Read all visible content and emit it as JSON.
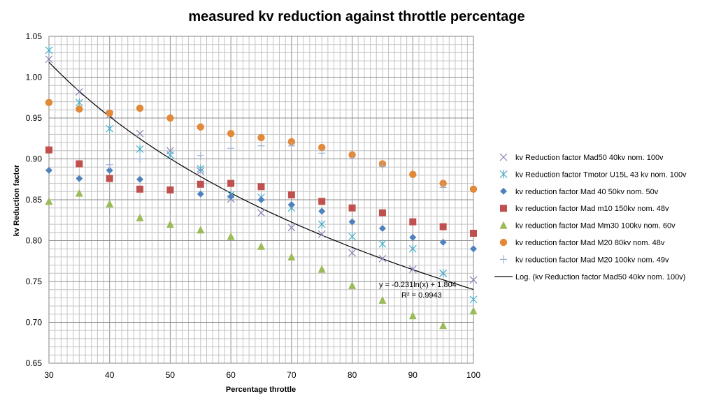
{
  "chart_data": {
    "type": "scatter",
    "title": "measured kv reduction against throttle percentage",
    "xlabel": "Percentage throttle",
    "ylabel": "kv Reduction factor",
    "xlim": [
      30,
      100
    ],
    "ylim": [
      0.65,
      1.05
    ],
    "x_ticks": [
      "30",
      "40",
      "50",
      "60",
      "70",
      "80",
      "90",
      "100"
    ],
    "y_ticks": [
      "0.65",
      "0.70",
      "0.75",
      "0.80",
      "0.85",
      "0.90",
      "0.95",
      "1.00",
      "1.05"
    ],
    "grid": true,
    "legend_position": "right",
    "x": [
      30,
      35,
      40,
      45,
      50,
      55,
      60,
      65,
      70,
      75,
      80,
      85,
      90,
      95,
      100
    ],
    "series": [
      {
        "name": "kv Reduction factor Mad50 40kv nom. 100v",
        "marker": "x",
        "color": "#8a7fb8",
        "values": [
          1.022,
          0.982,
          0.954,
          0.931,
          0.91,
          0.885,
          0.851,
          0.834,
          0.816,
          0.808,
          0.785,
          0.778,
          0.765,
          0.76,
          0.752
        ]
      },
      {
        "name": "kv Reduction factor Tmotor U15L 43 kv nom. 100v",
        "marker": "asterisk",
        "color": "#4bacc6",
        "values": [
          1.033,
          0.969,
          0.937,
          0.912,
          0.905,
          0.888,
          0.856,
          0.853,
          0.84,
          0.82,
          0.805,
          0.796,
          0.79,
          0.76,
          0.728
        ]
      },
      {
        "name": "kv reduction factor Mad 40 50kv nom. 50v",
        "marker": "diamond",
        "color": "#4f81bd",
        "values": [
          0.886,
          0.876,
          0.886,
          0.875,
          null,
          0.857,
          0.854,
          0.85,
          0.844,
          0.836,
          0.823,
          0.815,
          0.804,
          0.798,
          0.79
        ]
      },
      {
        "name": "kv reduction factor Mad m10 150kv nom. 48v",
        "marker": "square",
        "color": "#c0504d",
        "values": [
          0.911,
          0.894,
          0.876,
          0.863,
          0.862,
          0.869,
          0.87,
          0.866,
          0.856,
          0.848,
          0.84,
          0.834,
          0.823,
          0.817,
          0.809
        ]
      },
      {
        "name": "kv reduction factor Mad Mm30 100kv nom. 60v",
        "marker": "triangle",
        "color": "#9bbb59",
        "values": [
          0.848,
          0.858,
          0.845,
          0.828,
          0.82,
          0.813,
          0.805,
          0.793,
          0.78,
          0.765,
          0.745,
          0.727,
          0.708,
          0.696,
          0.714
        ]
      },
      {
        "name": "kv reduction factor Mad M20 80kv nom. 48v",
        "marker": "circle",
        "color": "#e2893a",
        "values": [
          0.969,
          0.961,
          0.956,
          0.962,
          0.95,
          0.939,
          0.931,
          0.926,
          0.921,
          0.914,
          0.905,
          0.894,
          0.881,
          0.87,
          0.863
        ]
      },
      {
        "name": "kv reduction factor Mad M20 100kv nom. 49v",
        "marker": "plus",
        "color": "#9fb0d2",
        "values": [
          null,
          null,
          0.893,
          0.9,
          null,
          0.904,
          0.913,
          0.916,
          0.916,
          0.907,
          0.9,
          0.891,
          null,
          0.865,
          null
        ]
      }
    ],
    "trendline": {
      "name": "Log. (kv Reduction factor Mad50 40kv nom. 100v)",
      "type": "logarithmic",
      "color": "#000000",
      "a": -0.231,
      "b": 1.804,
      "equation": "y = -0.231ln(x) + 1.804",
      "r2_label": "R² = 0.9943"
    }
  }
}
